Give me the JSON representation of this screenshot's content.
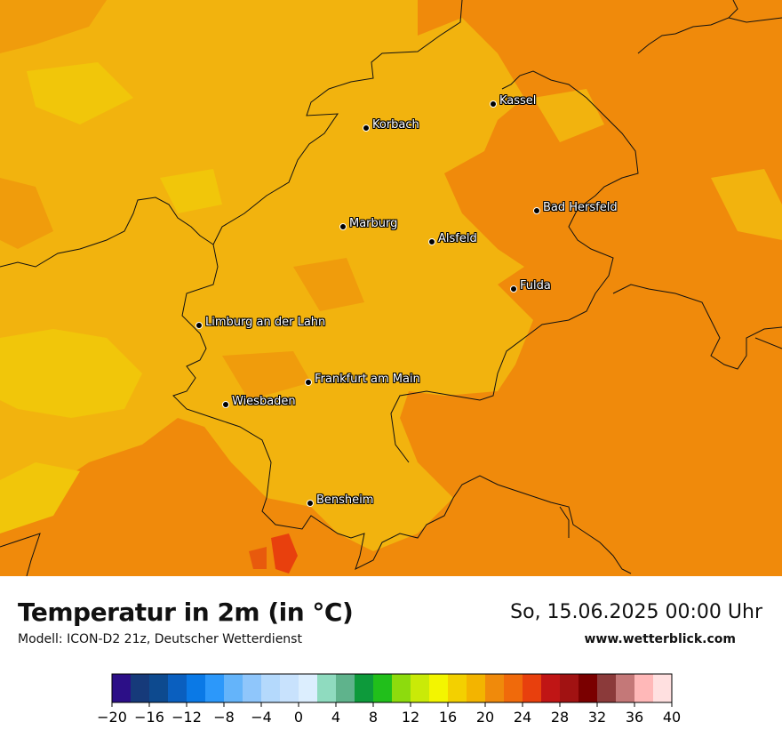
{
  "header": {
    "title": "Temperatur in 2m (in °C)",
    "model": "Modell: ICON-D2 21z, Deutscher Wetterdienst",
    "datetime": "So, 15.06.2025 00:00 Uhr",
    "website": "www.wetterblick.com"
  },
  "cities": [
    {
      "name": "Kassel"
    },
    {
      "name": "Korbach"
    },
    {
      "name": "Bad Hersfeld"
    },
    {
      "name": "Marburg"
    },
    {
      "name": "Alsfeld"
    },
    {
      "name": "Fulda"
    },
    {
      "name": "Limburg an der Lahn"
    },
    {
      "name": "Frankfurt am Main"
    },
    {
      "name": "Wiesbaden"
    },
    {
      "name": "Bensheim"
    }
  ],
  "legend": {
    "ticks": [
      "−20",
      "−16",
      "−12",
      "−8",
      "−4",
      "0",
      "4",
      "8",
      "12",
      "16",
      "20",
      "24",
      "28",
      "32",
      "36",
      "40"
    ],
    "colors": [
      "#2c0f87",
      "#163a7a",
      "#0d4a8f",
      "#0a5fbf",
      "#0a79e6",
      "#2c98fa",
      "#64b4fa",
      "#8fc6fb",
      "#b4d9fc",
      "#c8e2fd",
      "#dceefe",
      "#8fdbbf",
      "#5fb38c",
      "#0d9a3b",
      "#21bf1b",
      "#8ddb0d",
      "#c9ea08",
      "#f3f500",
      "#f3d000",
      "#f3b400",
      "#f08a0b",
      "#f06a0b",
      "#e8400d",
      "#c01515",
      "#a11212",
      "#7a0000",
      "#8b3a3a",
      "#c47878",
      "#ffb8b8",
      "#ffe0e0"
    ]
  },
  "map_colors": {
    "yellow": "#f2b30e",
    "orange": "#f08a0b",
    "lightyellow": "#f1d000",
    "red": "#e8400d"
  }
}
